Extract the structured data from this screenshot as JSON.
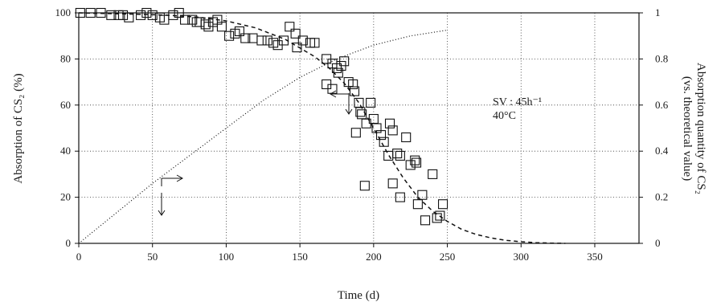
{
  "chart_data": {
    "type": "scatter",
    "xlabel": "Time (d)",
    "ylabel_left": "Absorption of CS₂ (%)",
    "ylabel_right_line1": "Absorption quantity of CS₂",
    "ylabel_right_line2": "(vs. theoretical value)",
    "xlim": [
      0,
      380
    ],
    "ylim_left": [
      0,
      100
    ],
    "ylim_right": [
      0,
      1
    ],
    "x_ticks": [
      0,
      50,
      100,
      150,
      200,
      250,
      300,
      350
    ],
    "y_left_ticks": [
      0,
      20,
      40,
      60,
      80,
      100
    ],
    "y_right_ticks": [
      "0",
      "0.2",
      "0.4",
      "0.6",
      "0.8",
      "1"
    ],
    "grid": true,
    "annotation_line1": "SV : 45h⁻¹",
    "annotation_line2": "40°C",
    "series": [
      {
        "marker": "open-square",
        "axis": "left",
        "points": [
          [
            1,
            100
          ],
          [
            8,
            100
          ],
          [
            15,
            100
          ],
          [
            22,
            99
          ],
          [
            27,
            99
          ],
          [
            30,
            99
          ],
          [
            34,
            98
          ],
          [
            42,
            99
          ],
          [
            46,
            100
          ],
          [
            50,
            99
          ],
          [
            55,
            98
          ],
          [
            58,
            97
          ],
          [
            64,
            99
          ],
          [
            68,
            100
          ],
          [
            72,
            97
          ],
          [
            77,
            97
          ],
          [
            80,
            96
          ],
          [
            82,
            96
          ],
          [
            86,
            95
          ],
          [
            88,
            94
          ],
          [
            91,
            96
          ],
          [
            94,
            97
          ],
          [
            97,
            94
          ],
          [
            102,
            90
          ],
          [
            106,
            91
          ],
          [
            109,
            92
          ],
          [
            113,
            89
          ],
          [
            118,
            89
          ],
          [
            124,
            88
          ],
          [
            128,
            88
          ],
          [
            132,
            87
          ],
          [
            135,
            86
          ],
          [
            139,
            88
          ],
          [
            143,
            94
          ],
          [
            147,
            91
          ],
          [
            148,
            85
          ],
          [
            152,
            88
          ],
          [
            157,
            87
          ],
          [
            160,
            87
          ],
          [
            168,
            80
          ],
          [
            172,
            78
          ],
          [
            175,
            76
          ],
          [
            176,
            74
          ],
          [
            178,
            77
          ],
          [
            180,
            79
          ],
          [
            183,
            70
          ],
          [
            186,
            69
          ],
          [
            187,
            66
          ],
          [
            190,
            61
          ],
          [
            191,
            57
          ],
          [
            192,
            56
          ],
          [
            195,
            52
          ],
          [
            198,
            61
          ],
          [
            200,
            54
          ],
          [
            202,
            50
          ],
          [
            205,
            47
          ],
          [
            207,
            44
          ],
          [
            211,
            52
          ],
          [
            213,
            49
          ],
          [
            216,
            39
          ],
          [
            218,
            38
          ],
          [
            222,
            46
          ],
          [
            225,
            34
          ],
          [
            228,
            36
          ],
          [
            229,
            35
          ],
          [
            230,
            17
          ],
          [
            233,
            21
          ],
          [
            235,
            10
          ],
          [
            240,
            30
          ],
          [
            243,
            11
          ],
          [
            245,
            12
          ],
          [
            168,
            69
          ],
          [
            172,
            67
          ],
          [
            188,
            48
          ],
          [
            194,
            25
          ],
          [
            210,
            38
          ],
          [
            213,
            26
          ],
          [
            218,
            20
          ],
          [
            247,
            17
          ]
        ]
      },
      {
        "style": "dashed",
        "axis": "left",
        "points": [
          [
            0,
            100
          ],
          [
            20,
            99.7
          ],
          [
            40,
            99.4
          ],
          [
            60,
            99
          ],
          [
            80,
            98.2
          ],
          [
            100,
            96.5
          ],
          [
            120,
            93.5
          ],
          [
            140,
            88.5
          ],
          [
            160,
            81
          ],
          [
            170,
            76
          ],
          [
            180,
            69.5
          ],
          [
            190,
            61
          ],
          [
            200,
            50
          ],
          [
            210,
            38.5
          ],
          [
            220,
            28.5
          ],
          [
            230,
            20
          ],
          [
            240,
            14
          ],
          [
            250,
            9.5
          ],
          [
            260,
            6
          ],
          [
            270,
            3.8
          ],
          [
            280,
            2.3
          ],
          [
            290,
            1.3
          ],
          [
            300,
            0.7
          ],
          [
            310,
            0.3
          ],
          [
            320,
            0.1
          ],
          [
            330,
            0
          ]
        ]
      },
      {
        "style": "dotted",
        "axis": "right",
        "points": [
          [
            0,
            0
          ],
          [
            25,
            0.13
          ],
          [
            50,
            0.26
          ],
          [
            75,
            0.38
          ],
          [
            100,
            0.5
          ],
          [
            125,
            0.62
          ],
          [
            150,
            0.72
          ],
          [
            175,
            0.8
          ],
          [
            200,
            0.86
          ],
          [
            225,
            0.9
          ],
          [
            250,
            0.925
          ]
        ]
      }
    ]
  }
}
